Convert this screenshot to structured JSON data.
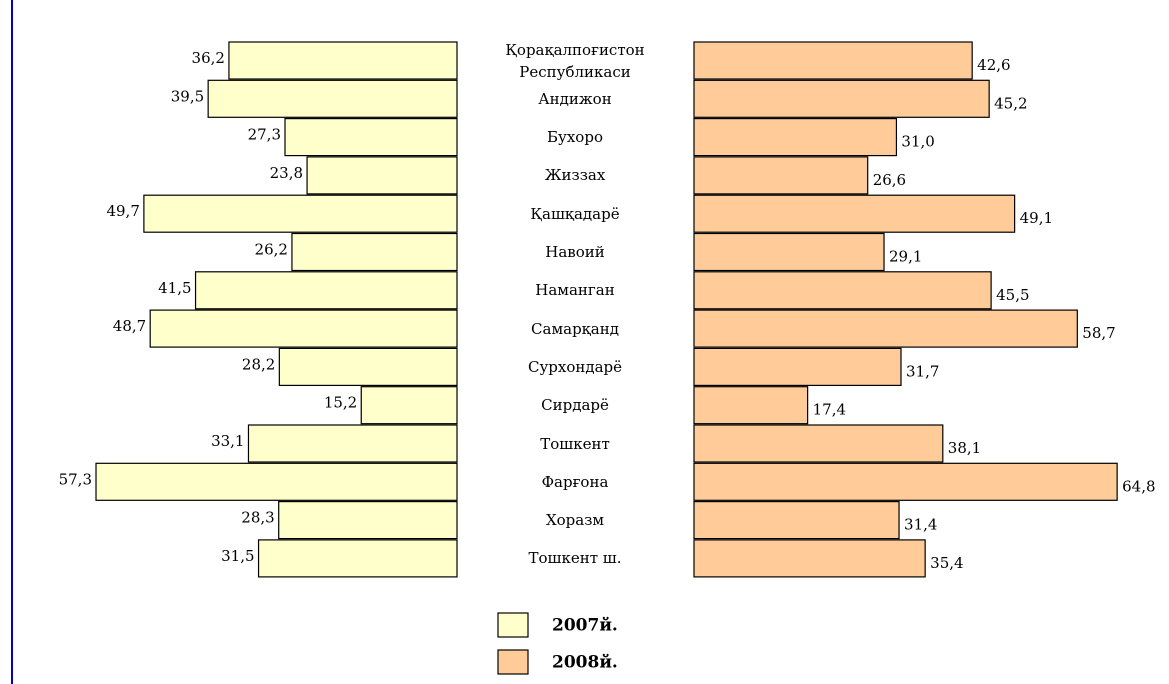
{
  "chart_data": {
    "type": "butterfly-bar",
    "categories": [
      "Қорақалпоғистон Республикаси",
      "Андижон",
      "Бухоро",
      "Жиззах",
      "Қашқадарё",
      "Навоий",
      "Наманган",
      "Самарқанд",
      "Сурхондарё",
      "Сирдарё",
      "Тошкент",
      "Фарғона",
      "Хоразм",
      "Тошкент ш."
    ],
    "series": [
      {
        "name": "2007й.",
        "color": "#ffffcc",
        "values": [
          36.2,
          39.5,
          27.3,
          23.8,
          49.7,
          26.2,
          41.5,
          48.7,
          28.2,
          15.2,
          33.1,
          57.3,
          28.3,
          31.5
        ],
        "value_labels": [
          "36,2",
          "39,5",
          "27,3",
          "23,8",
          "49,7",
          "26,2",
          "41,5",
          "48,7",
          "28,2",
          "15,2",
          "33,1",
          "57,3",
          "28,3",
          "31,5"
        ]
      },
      {
        "name": "2008й.",
        "color": "#ffcc99",
        "values": [
          42.6,
          45.2,
          31.0,
          26.6,
          49.1,
          29.1,
          45.5,
          58.7,
          31.7,
          17.4,
          38.1,
          64.8,
          31.4,
          35.4
        ],
        "value_labels": [
          "42,6",
          "45,2",
          "31,0",
          "26,6",
          "49,1",
          "29,1",
          "45,5",
          "58,7",
          "31,7",
          "17,4",
          "38,1",
          "64,8",
          "31,4",
          "35,4"
        ]
      }
    ]
  }
}
